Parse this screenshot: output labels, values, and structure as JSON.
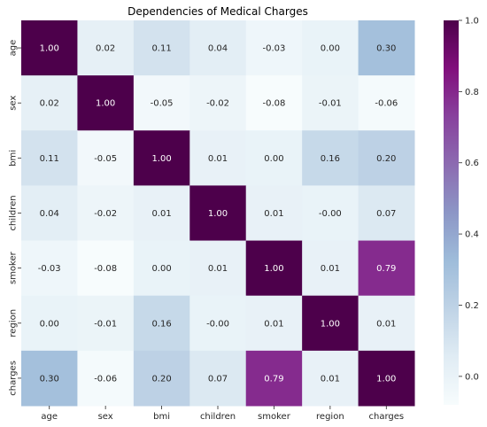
{
  "chart_data": {
    "type": "heatmap",
    "title": "Dependencies of Medical Charges",
    "xlabels": [
      "age",
      "sex",
      "bmi",
      "children",
      "smoker",
      "region",
      "charges"
    ],
    "ylabels": [
      "age",
      "sex",
      "bmi",
      "children",
      "smoker",
      "region",
      "charges"
    ],
    "values": [
      [
        1.0,
        0.02,
        0.11,
        0.04,
        -0.03,
        0.0,
        0.3
      ],
      [
        0.02,
        1.0,
        -0.05,
        -0.02,
        -0.08,
        -0.01,
        -0.06
      ],
      [
        0.11,
        -0.05,
        1.0,
        0.01,
        0.0,
        0.16,
        0.2
      ],
      [
        0.04,
        -0.02,
        0.01,
        1.0,
        0.01,
        -0.0,
        0.07
      ],
      [
        -0.03,
        -0.08,
        0.0,
        0.01,
        1.0,
        0.01,
        0.79
      ],
      [
        0.0,
        -0.01,
        0.16,
        -0.0,
        0.01,
        1.0,
        0.01
      ],
      [
        0.3,
        -0.06,
        0.2,
        0.07,
        0.79,
        0.01,
        1.0
      ]
    ],
    "value_labels": [
      [
        "1.00",
        "0.02",
        "0.11",
        "0.04",
        "-0.03",
        "0.00",
        "0.30"
      ],
      [
        "0.02",
        "1.00",
        "-0.05",
        "-0.02",
        "-0.08",
        "-0.01",
        "-0.06"
      ],
      [
        "0.11",
        "-0.05",
        "1.00",
        "0.01",
        "0.00",
        "0.16",
        "0.20"
      ],
      [
        "0.04",
        "-0.02",
        "0.01",
        "1.00",
        "0.01",
        "-0.00",
        "0.07"
      ],
      [
        "-0.03",
        "-0.08",
        "0.00",
        "0.01",
        "1.00",
        "0.01",
        "0.79"
      ],
      [
        "0.00",
        "-0.01",
        "0.16",
        "-0.00",
        "0.01",
        "1.00",
        "0.01"
      ],
      [
        "0.30",
        "-0.06",
        "0.20",
        "0.07",
        "0.79",
        "0.01",
        "1.00"
      ]
    ],
    "colormap": "BuPu",
    "vmin": -0.08,
    "vmax": 1.0,
    "colorbar_ticks": [
      0.0,
      0.2,
      0.4,
      0.6,
      0.8,
      1.0
    ],
    "colorbar_tick_labels": [
      "0.0",
      "0.2",
      "0.4",
      "0.6",
      "0.8",
      "1.0"
    ],
    "colormap_stops": [
      "#f7fcfd",
      "#e0ecf4",
      "#bfd3e6",
      "#9ebcda",
      "#8c96c6",
      "#8c6bb1",
      "#88419d",
      "#810f7c",
      "#4d004b"
    ]
  }
}
